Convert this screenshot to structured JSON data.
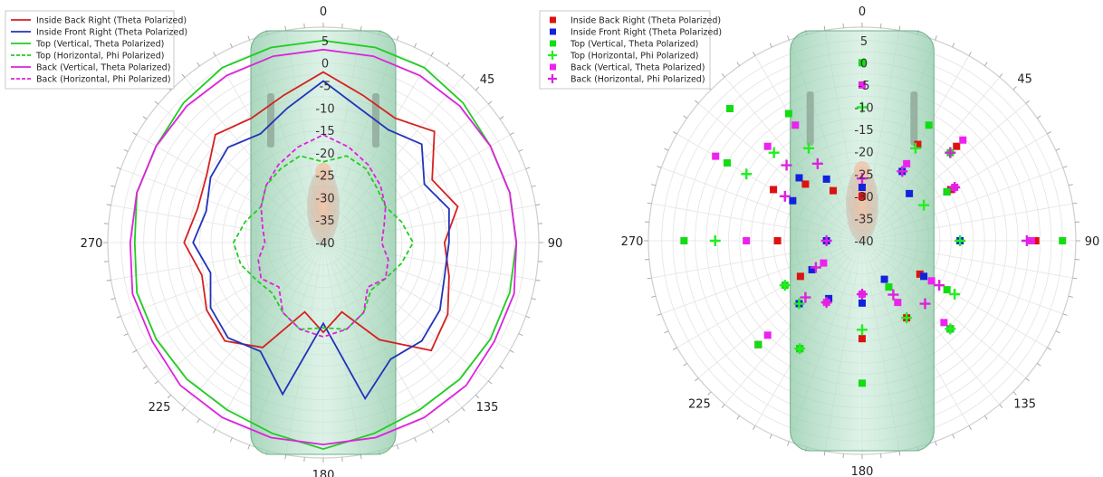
{
  "chart_data": [
    {
      "type": "polar-line",
      "theta_direction": "clockwise",
      "theta_zero": "top",
      "theta_ticks": [
        0,
        45,
        90,
        135,
        180,
        225,
        270
      ],
      "r_ticks": [
        5,
        0,
        -5,
        -10,
        -15,
        -20,
        -25,
        -30,
        -35,
        -40
      ],
      "r_range": [
        -40,
        8
      ],
      "grid": true,
      "legend_position": "top-left",
      "series": [
        {
          "name": "Inside Back Right (Theta Polarized)",
          "color": "#d62020",
          "dash": "solid",
          "theta": [
            0,
            15,
            30,
            45,
            60,
            75,
            90,
            105,
            120,
            135,
            150,
            165,
            180,
            195,
            210,
            225,
            240,
            255,
            270,
            285,
            300,
            315,
            330,
            345
          ],
          "r": [
            -2,
            -6,
            -8,
            -5,
            -12,
            -9,
            -13,
            -11,
            -8,
            -6,
            -15,
            -24,
            -20,
            -24,
            -13,
            -9,
            -10,
            -12,
            -9,
            -11,
            -10,
            -6,
            -8,
            -6
          ]
        },
        {
          "name": "Inside Front Right (Theta Polarized)",
          "color": "#2233bb",
          "dash": "solid",
          "theta": [
            0,
            15,
            30,
            45,
            60,
            75,
            90,
            105,
            120,
            135,
            150,
            165,
            180,
            195,
            210,
            225,
            240,
            255,
            270,
            285,
            300,
            315,
            330,
            345
          ],
          "r": [
            -4,
            -9,
            -11,
            -9,
            -14,
            -11,
            -12,
            -12,
            -10,
            -9,
            -10,
            -4,
            -22,
            -5,
            -12,
            -10,
            -11,
            -14,
            -11,
            -13,
            -11,
            -10,
            -12,
            -9
          ]
        },
        {
          "name": "Top (Vertical, Theta Polarized)",
          "color": "#22cc22",
          "dash": "solid",
          "theta": [
            0,
            15,
            30,
            45,
            60,
            75,
            90,
            105,
            120,
            135,
            150,
            165,
            180,
            195,
            210,
            225,
            240,
            255,
            270,
            285,
            300,
            315,
            330,
            345
          ],
          "r": [
            5,
            5,
            5,
            4,
            3,
            3,
            3,
            3,
            3,
            3,
            3,
            4,
            6,
            4,
            3,
            3,
            3,
            3,
            2,
            3,
            3,
            4,
            5,
            5
          ]
        },
        {
          "name": "Top (Horizontal, Phi Polarized)",
          "color": "#22cc22",
          "dash": "dashed",
          "theta": [
            0,
            15,
            30,
            45,
            60,
            75,
            90,
            105,
            120,
            135,
            150,
            165,
            180,
            195,
            210,
            225,
            240,
            255,
            270,
            285,
            300,
            315,
            330,
            345
          ],
          "r": [
            -22,
            -20,
            -21,
            -23,
            -24,
            -22,
            -20,
            -22,
            -24,
            -25,
            -22,
            -20,
            -21,
            -20,
            -22,
            -24,
            -23,
            -21,
            -20,
            -22,
            -24,
            -22,
            -21,
            -20
          ]
        },
        {
          "name": "Back (Vertical, Theta Polarized)",
          "color": "#dd22dd",
          "dash": "solid",
          "theta": [
            0,
            15,
            30,
            45,
            60,
            75,
            90,
            105,
            120,
            135,
            150,
            165,
            180,
            195,
            210,
            225,
            240,
            255,
            270,
            285,
            300,
            315,
            330,
            345
          ],
          "r": [
            3,
            3,
            3,
            3,
            3,
            3,
            3,
            4,
            4,
            5,
            5,
            5,
            5,
            5,
            5,
            5,
            4,
            4,
            3,
            3,
            3,
            3,
            3,
            3
          ]
        },
        {
          "name": "Back (Horizontal, Phi Polarized)",
          "color": "#dd22dd",
          "dash": "dashed",
          "theta": [
            0,
            15,
            30,
            45,
            60,
            75,
            90,
            105,
            120,
            135,
            150,
            165,
            180,
            195,
            210,
            225,
            240,
            255,
            270,
            285,
            300,
            315,
            330,
            345
          ],
          "r": [
            -16,
            -18,
            -20,
            -22,
            -24,
            -26,
            -27,
            -25,
            -24,
            -26,
            -22,
            -20,
            -19,
            -20,
            -22,
            -26,
            -24,
            -25,
            -27,
            -26,
            -24,
            -22,
            -20,
            -18
          ]
        }
      ]
    },
    {
      "type": "polar-scatter",
      "theta_direction": "clockwise",
      "theta_zero": "top",
      "theta_ticks": [
        0,
        45,
        90,
        135,
        180,
        225,
        270
      ],
      "r_ticks": [
        5,
        0,
        -5,
        -10,
        -15,
        -20,
        -25,
        -30,
        -35,
        -40
      ],
      "r_range": [
        -40,
        8
      ],
      "grid": true,
      "legend_position": "top-left",
      "series": [
        {
          "name": "Inside Back Right (Theta Polarized)",
          "color": "#dd1111",
          "marker": "square",
          "theta": [
            0,
            45,
            90,
            135,
            180,
            225,
            270,
            315,
            30,
            60,
            120,
            150,
            210,
            240,
            300,
            330
          ],
          "r": [
            -30,
            -10,
            -1,
            -12,
            -18,
            -7,
            -21,
            -22,
            -15,
            -17,
            -25,
            -20,
            -12,
            -24,
            -17,
            -27
          ]
        },
        {
          "name": "Inside Front Right (Theta Polarized)",
          "color": "#1122dd",
          "marker": "square",
          "theta": [
            0,
            45,
            90,
            135,
            180,
            225,
            270,
            315,
            30,
            60,
            120,
            150,
            210,
            240,
            300,
            330
          ],
          "r": [
            -28,
            -25,
            -18,
            -12,
            -26,
            -20,
            -32,
            -20,
            -22,
            -18,
            -24,
            -30,
            -25,
            -27,
            -22,
            -24
          ]
        },
        {
          "name": "Top (Vertical, Theta Polarized)",
          "color": "#11dd11",
          "marker": "square",
          "theta": [
            0,
            45,
            90,
            135,
            180,
            225,
            270,
            315,
            30,
            60,
            120,
            150,
            210,
            240,
            300,
            330
          ],
          "r": [
            0,
            -12,
            5,
            -12,
            -8,
            -7,
            0,
            2,
            -10,
            -18,
            -18,
            -28,
            -12,
            -20,
            -5,
            -7
          ]
        },
        {
          "name": "Top (Horizontal, Phi Polarized)",
          "color": "#22ee22",
          "marker": "plus",
          "theta": [
            0,
            45,
            90,
            135,
            180,
            225,
            270,
            315,
            30,
            60,
            120,
            150,
            210,
            240,
            300,
            330
          ],
          "r": [
            -10,
            -12,
            -18,
            -12,
            -20,
            -20,
            -7,
            -12,
            -16,
            -24,
            -16,
            -20,
            -12,
            -20,
            -10,
            -16
          ]
        },
        {
          "name": "Back (Vertical, Theta Polarized)",
          "color": "#ee22ee",
          "marker": "square",
          "theta": [
            0,
            45,
            90,
            135,
            180,
            225,
            270,
            315,
            30,
            60,
            120,
            150,
            210,
            240,
            300,
            330
          ],
          "r": [
            -5,
            -8,
            -2,
            -14,
            -28,
            -10,
            -14,
            -10,
            -20,
            -16,
            -22,
            -24,
            -24,
            -30,
            -2,
            -10
          ]
        },
        {
          "name": "Back (Horizontal, Phi Polarized)",
          "color": "#dd22dd",
          "marker": "plus",
          "theta": [
            0,
            45,
            90,
            135,
            180,
            225,
            270,
            315,
            30,
            60,
            120,
            150,
            210,
            240,
            300,
            330
          ],
          "r": [
            -26,
            -12,
            -3,
            -20,
            -28,
            -22,
            -32,
            -16,
            -22,
            -16,
            -20,
            -26,
            -24,
            -28,
            -20,
            -20
          ]
        }
      ]
    }
  ]
}
